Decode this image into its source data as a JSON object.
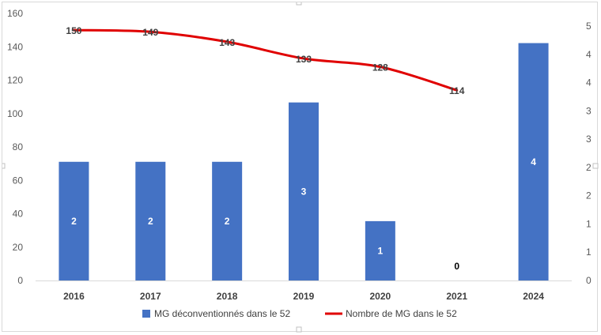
{
  "chart_data": {
    "type": "bar",
    "categories": [
      "2016",
      "2017",
      "2018",
      "2019",
      "2020",
      "2021",
      "2024"
    ],
    "series": [
      {
        "name": "MG déconventionnés dans le 52",
        "chart_type": "bar",
        "axis": "right",
        "values": [
          2,
          2,
          2,
          3,
          1,
          0,
          4
        ],
        "color": "#4472C4"
      },
      {
        "name": "Nombre de MG dans le 52",
        "chart_type": "line",
        "axis": "left",
        "values": [
          150,
          149,
          143,
          133,
          128,
          114,
          null
        ],
        "color": "#E00000"
      }
    ],
    "left_axis": {
      "ylim": [
        0,
        160
      ],
      "ticks": [
        "0",
        "20",
        "40",
        "60",
        "80",
        "100",
        "120",
        "140",
        "160"
      ]
    },
    "right_axis": {
      "ylim": [
        0,
        4.5
      ],
      "ticks": [
        "0",
        "1",
        "1",
        "2",
        "2",
        "3",
        "3",
        "4",
        "4",
        "5"
      ]
    },
    "grid": false,
    "legend": "bottom",
    "title": "",
    "xlabel": "",
    "ylabel": ""
  }
}
